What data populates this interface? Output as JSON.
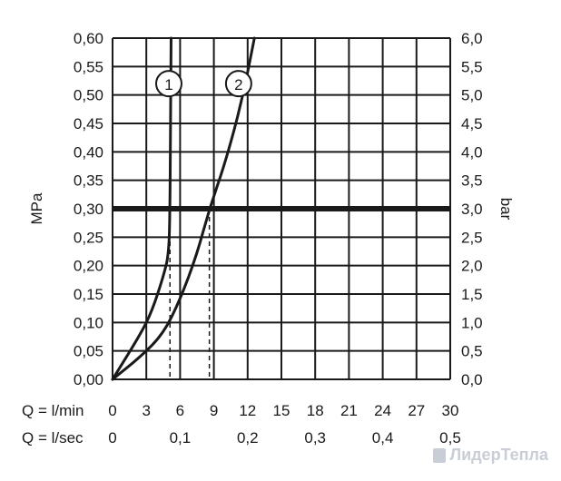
{
  "chart_data": {
    "type": "line",
    "xlabel_primary": "Q = l/min",
    "xlabel_secondary": "Q = l/sec",
    "ylabel_left": "MPa",
    "ylabel_right": "bar",
    "x_ticks": [
      "0",
      "3",
      "6",
      "9",
      "12",
      "15",
      "18",
      "21",
      "24",
      "27",
      "30"
    ],
    "x2_ticks": [
      {
        "value": 0,
        "label": "0"
      },
      {
        "value": 6,
        "label": "0,1"
      },
      {
        "value": 12,
        "label": "0,2"
      },
      {
        "value": 18,
        "label": "0,3"
      },
      {
        "value": 24,
        "label": "0,4"
      },
      {
        "value": 30,
        "label": "0,5"
      }
    ],
    "y_ticks_left": [
      "0,00",
      "0,05",
      "0,10",
      "0,15",
      "0,20",
      "0,25",
      "0,30",
      "0,35",
      "0,40",
      "0,45",
      "0,50",
      "0,55",
      "0,60"
    ],
    "y_ticks_right": [
      "0,0",
      "0,5",
      "1,0",
      "1,5",
      "2,0",
      "2,5",
      "3,0",
      "3,5",
      "4,0",
      "4,5",
      "5,0",
      "5,5",
      "6,0"
    ],
    "xlim": [
      0,
      30
    ],
    "ylim": [
      0,
      0.6
    ],
    "grid": true,
    "reference_line": {
      "y": 0.3,
      "style": "bold"
    },
    "series": [
      {
        "name": "1",
        "points": [
          [
            0,
            0
          ],
          [
            2.5,
            0.08
          ],
          [
            3.5,
            0.12
          ],
          [
            4.5,
            0.18
          ],
          [
            5.0,
            0.22
          ],
          [
            5.1,
            0.3
          ],
          [
            5.15,
            0.45
          ],
          [
            5.2,
            0.6
          ]
        ],
        "label_at": [
          5.0,
          0.52
        ],
        "drop_at": [
          5.1,
          0.3
        ]
      },
      {
        "name": "2",
        "points": [
          [
            0,
            0
          ],
          [
            2.5,
            0.04
          ],
          [
            4.5,
            0.08
          ],
          [
            6.0,
            0.14
          ],
          [
            7.5,
            0.22
          ],
          [
            8.6,
            0.3
          ],
          [
            10,
            0.38
          ],
          [
            11.5,
            0.49
          ],
          [
            12.6,
            0.6
          ]
        ],
        "label_at": [
          11.2,
          0.52
        ],
        "drop_at": [
          8.6,
          0.3
        ]
      }
    ]
  },
  "watermark": {
    "text": "ЛидерТепла"
  }
}
